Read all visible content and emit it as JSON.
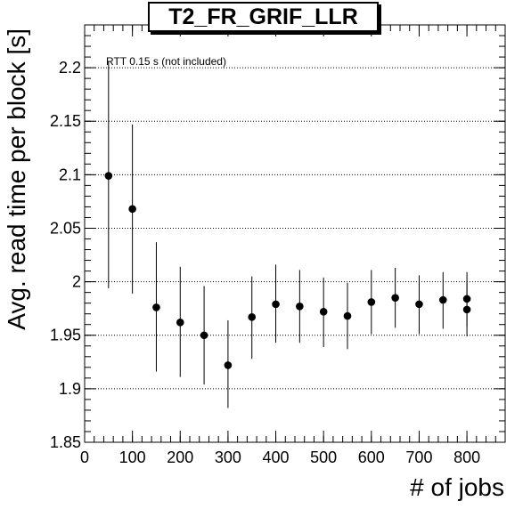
{
  "chart_data": {
    "type": "scatter",
    "title": "T2_FR_GRIF_LLR",
    "xlabel": "# of jobs",
    "ylabel": "Avg. read time per block [s]",
    "annotation": "RTT 0.15 s (not included)",
    "xlim": [
      0,
      880
    ],
    "ylim": [
      1.85,
      2.24
    ],
    "x_ticks": [
      0,
      100,
      200,
      300,
      400,
      500,
      600,
      700,
      800
    ],
    "x_tick_labels": [
      "0",
      "100",
      "200",
      "300",
      "400",
      "500",
      "600",
      "700",
      "800"
    ],
    "y_ticks": [
      1.85,
      1.9,
      1.95,
      2.0,
      2.05,
      2.1,
      2.15,
      2.2
    ],
    "y_tick_labels": [
      "1.85",
      "1.9",
      "1.95",
      "2",
      "2.05",
      "2.1",
      "2.15",
      "2.2"
    ],
    "grid": "horizontal-dotted",
    "points": [
      {
        "x": 50,
        "y": 2.099,
        "ylow": 1.994,
        "yhigh": 2.206
      },
      {
        "x": 100,
        "y": 2.068,
        "ylow": 1.989,
        "yhigh": 2.147
      },
      {
        "x": 150,
        "y": 1.976,
        "ylow": 1.916,
        "yhigh": 2.037
      },
      {
        "x": 200,
        "y": 1.962,
        "ylow": 1.911,
        "yhigh": 2.014
      },
      {
        "x": 250,
        "y": 1.95,
        "ylow": 1.904,
        "yhigh": 1.996
      },
      {
        "x": 300,
        "y": 1.922,
        "ylow": 1.882,
        "yhigh": 1.964
      },
      {
        "x": 350,
        "y": 1.967,
        "ylow": 1.928,
        "yhigh": 2.005
      },
      {
        "x": 400,
        "y": 1.979,
        "ylow": 1.943,
        "yhigh": 2.016
      },
      {
        "x": 450,
        "y": 1.977,
        "ylow": 1.943,
        "yhigh": 2.011
      },
      {
        "x": 500,
        "y": 1.972,
        "ylow": 1.939,
        "yhigh": 2.004
      },
      {
        "x": 550,
        "y": 1.968,
        "ylow": 1.937,
        "yhigh": 1.999
      },
      {
        "x": 600,
        "y": 1.981,
        "ylow": 1.951,
        "yhigh": 2.011
      },
      {
        "x": 650,
        "y": 1.985,
        "ylow": 1.957,
        "yhigh": 2.013
      },
      {
        "x": 700,
        "y": 1.979,
        "ylow": 1.951,
        "yhigh": 2.006
      },
      {
        "x": 750,
        "y": 1.983,
        "ylow": 1.956,
        "yhigh": 2.009
      },
      {
        "x": 800,
        "y": 1.984,
        "ylow": 1.958,
        "yhigh": 2.009
      },
      {
        "x": 800,
        "y": 1.974,
        "ylow": 1.949,
        "yhigh": 1.999
      }
    ]
  }
}
